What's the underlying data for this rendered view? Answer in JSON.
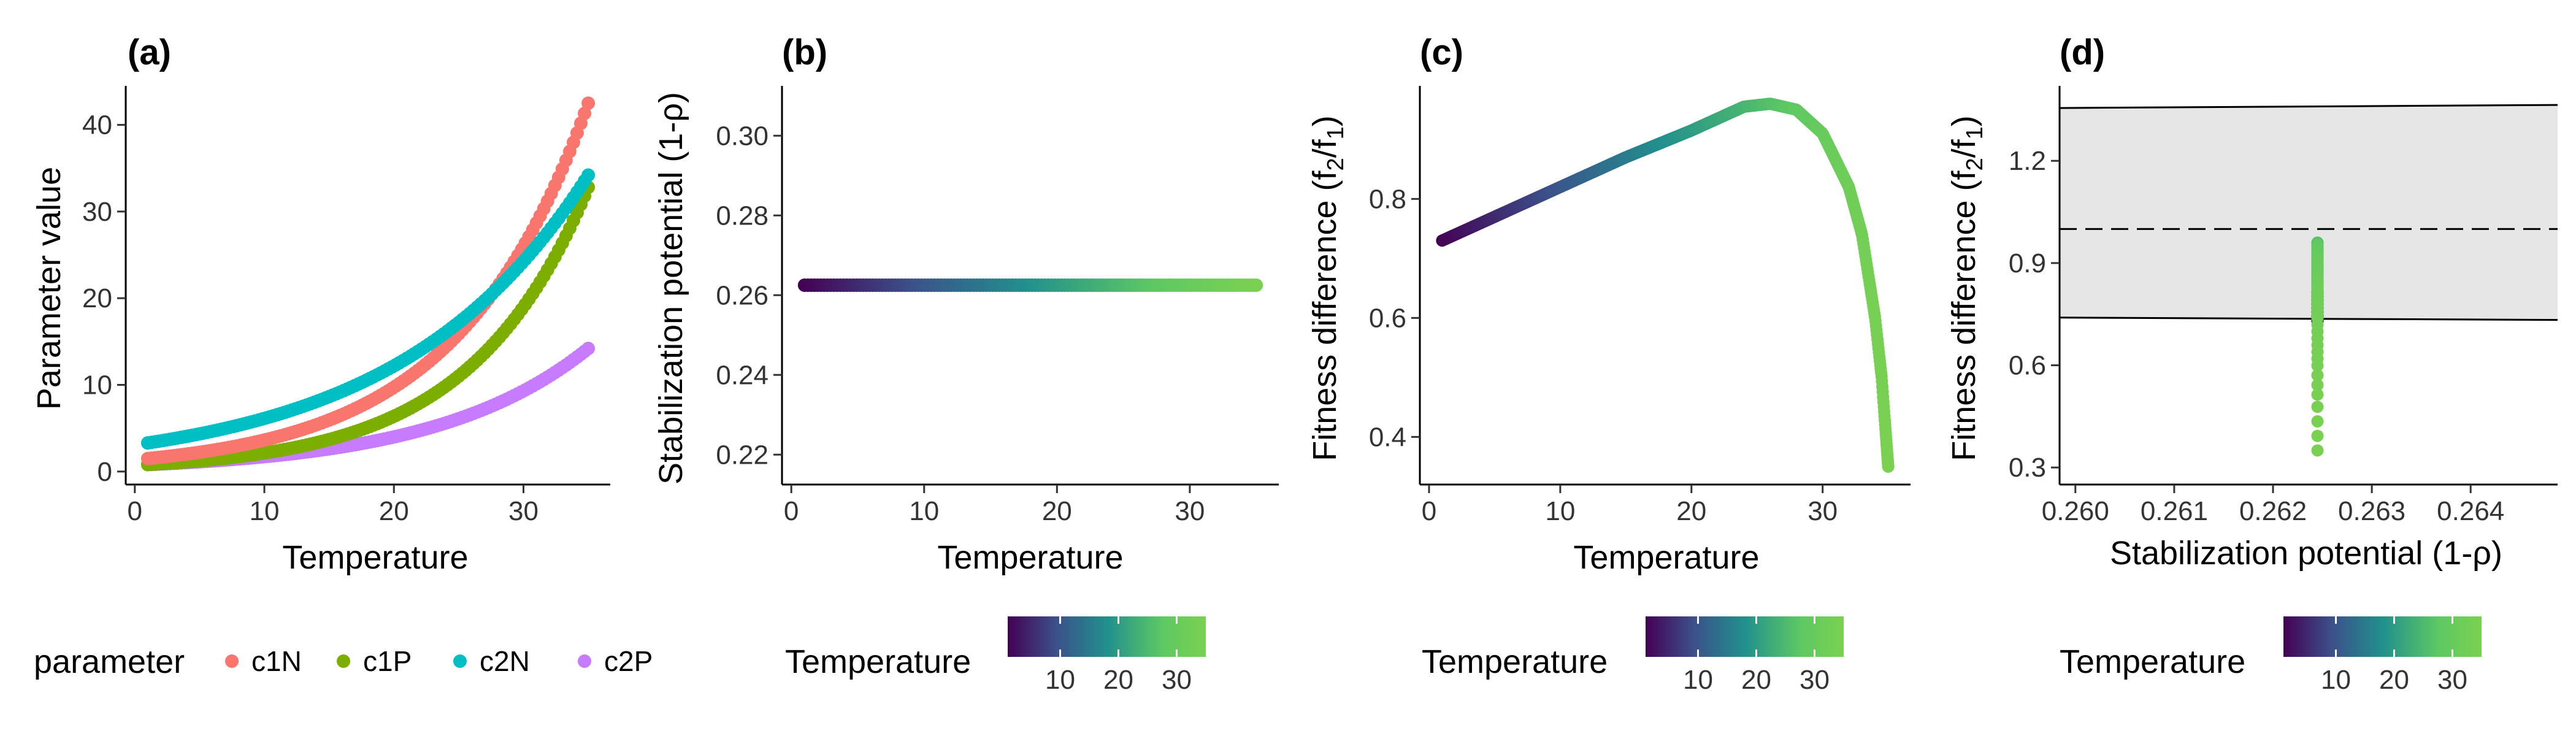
{
  "chart_data": [
    {
      "panel_label": "(a)",
      "type": "scatter",
      "xlabel": "Temperature",
      "ylabel": "Parameter value",
      "xlim": [
        -0.7,
        36.7
      ],
      "ylim": [
        -1.5,
        44.5
      ],
      "xticks": [
        "0",
        "10",
        "20",
        "30"
      ],
      "yticks": [
        "0",
        "10",
        "20",
        "30",
        "40"
      ],
      "x_range": [
        1,
        35
      ],
      "series": [
        {
          "name": "c1N",
          "color": "#F8766D",
          "curve": "exponential",
          "x": [
            1,
            35
          ],
          "y": [
            1.5,
            42.5
          ]
        },
        {
          "name": "c1P",
          "color": "#7CAE00",
          "curve": "exponential",
          "x": [
            1,
            35
          ],
          "y": [
            0.8,
            32.8
          ]
        },
        {
          "name": "c2N",
          "color": "#00BFC4",
          "curve": "exponential",
          "x": [
            1,
            35
          ],
          "y": [
            3.3,
            34.2
          ]
        },
        {
          "name": "c2P",
          "color": "#C77CFF",
          "curve": "exponential",
          "x": [
            1,
            35
          ],
          "y": [
            0.8,
            14.2
          ]
        }
      ]
    },
    {
      "panel_label": "(b)",
      "type": "scatter",
      "xlabel": "Temperature",
      "ylabel": "Stabilization potential (1-ρ)",
      "xlim": [
        -0.7,
        36.7
      ],
      "ylim": [
        0.2125,
        0.3125
      ],
      "xticks": [
        "0",
        "10",
        "20",
        "30"
      ],
      "yticks": [
        "0.22",
        "0.24",
        "0.26",
        "0.28",
        "0.30"
      ],
      "x_range": [
        1,
        35
      ],
      "y_constant": 0.2625,
      "color_by": "Temperature"
    },
    {
      "panel_label": "(c)",
      "type": "scatter",
      "xlabel": "Temperature",
      "ylabel": "Fitness difference (f2/f1)",
      "xlim": [
        -0.7,
        36.7
      ],
      "ylim": [
        0.32,
        0.99
      ],
      "xticks": [
        "0",
        "10",
        "20",
        "30"
      ],
      "yticks": [
        "0.4",
        "0.6",
        "0.8"
      ],
      "x": [
        1,
        5,
        10,
        15,
        20,
        24,
        26,
        28,
        30,
        32,
        33,
        34,
        34.5,
        35
      ],
      "y": [
        0.73,
        0.77,
        0.82,
        0.87,
        0.915,
        0.955,
        0.96,
        0.95,
        0.91,
        0.82,
        0.74,
        0.6,
        0.5,
        0.35
      ],
      "color_by": "Temperature"
    },
    {
      "panel_label": "(d)",
      "type": "scatter",
      "xlabel": "Stabilization potential (1-ρ)",
      "ylabel": "Fitness difference (f2/f1)",
      "xlim": [
        0.25984,
        0.26488
      ],
      "ylim": [
        0.25,
        1.42
      ],
      "xticks": [
        "0.260",
        "0.261",
        "0.262",
        "0.263",
        "0.264"
      ],
      "yticks": [
        "0.3",
        "0.6",
        "0.9",
        "1.2"
      ],
      "x_constant": 0.26245,
      "y_range": [
        0.35,
        0.96
      ],
      "coexistence_region": {
        "x": [
          0.25984,
          0.26488
        ],
        "lower": [
          0.74,
          0.733
        ],
        "upper": [
          1.355,
          1.364
        ]
      },
      "reference_line_y": 1.0,
      "color_by": "Temperature"
    }
  ],
  "legends": {
    "parameter": {
      "title": "parameter",
      "items": [
        {
          "label": "c1N",
          "color": "#F8766D"
        },
        {
          "label": "c1P",
          "color": "#7CAE00"
        },
        {
          "label": "c2N",
          "color": "#00BFC4"
        },
        {
          "label": "c2P",
          "color": "#C77CFF"
        }
      ]
    },
    "temperature": {
      "title": "Temperature",
      "range": [
        1,
        35
      ],
      "ticks": [
        "10",
        "20",
        "30"
      ],
      "colors": [
        "#440154",
        "#3b528b",
        "#21908d",
        "#5dc863",
        "#7ad151"
      ]
    }
  }
}
